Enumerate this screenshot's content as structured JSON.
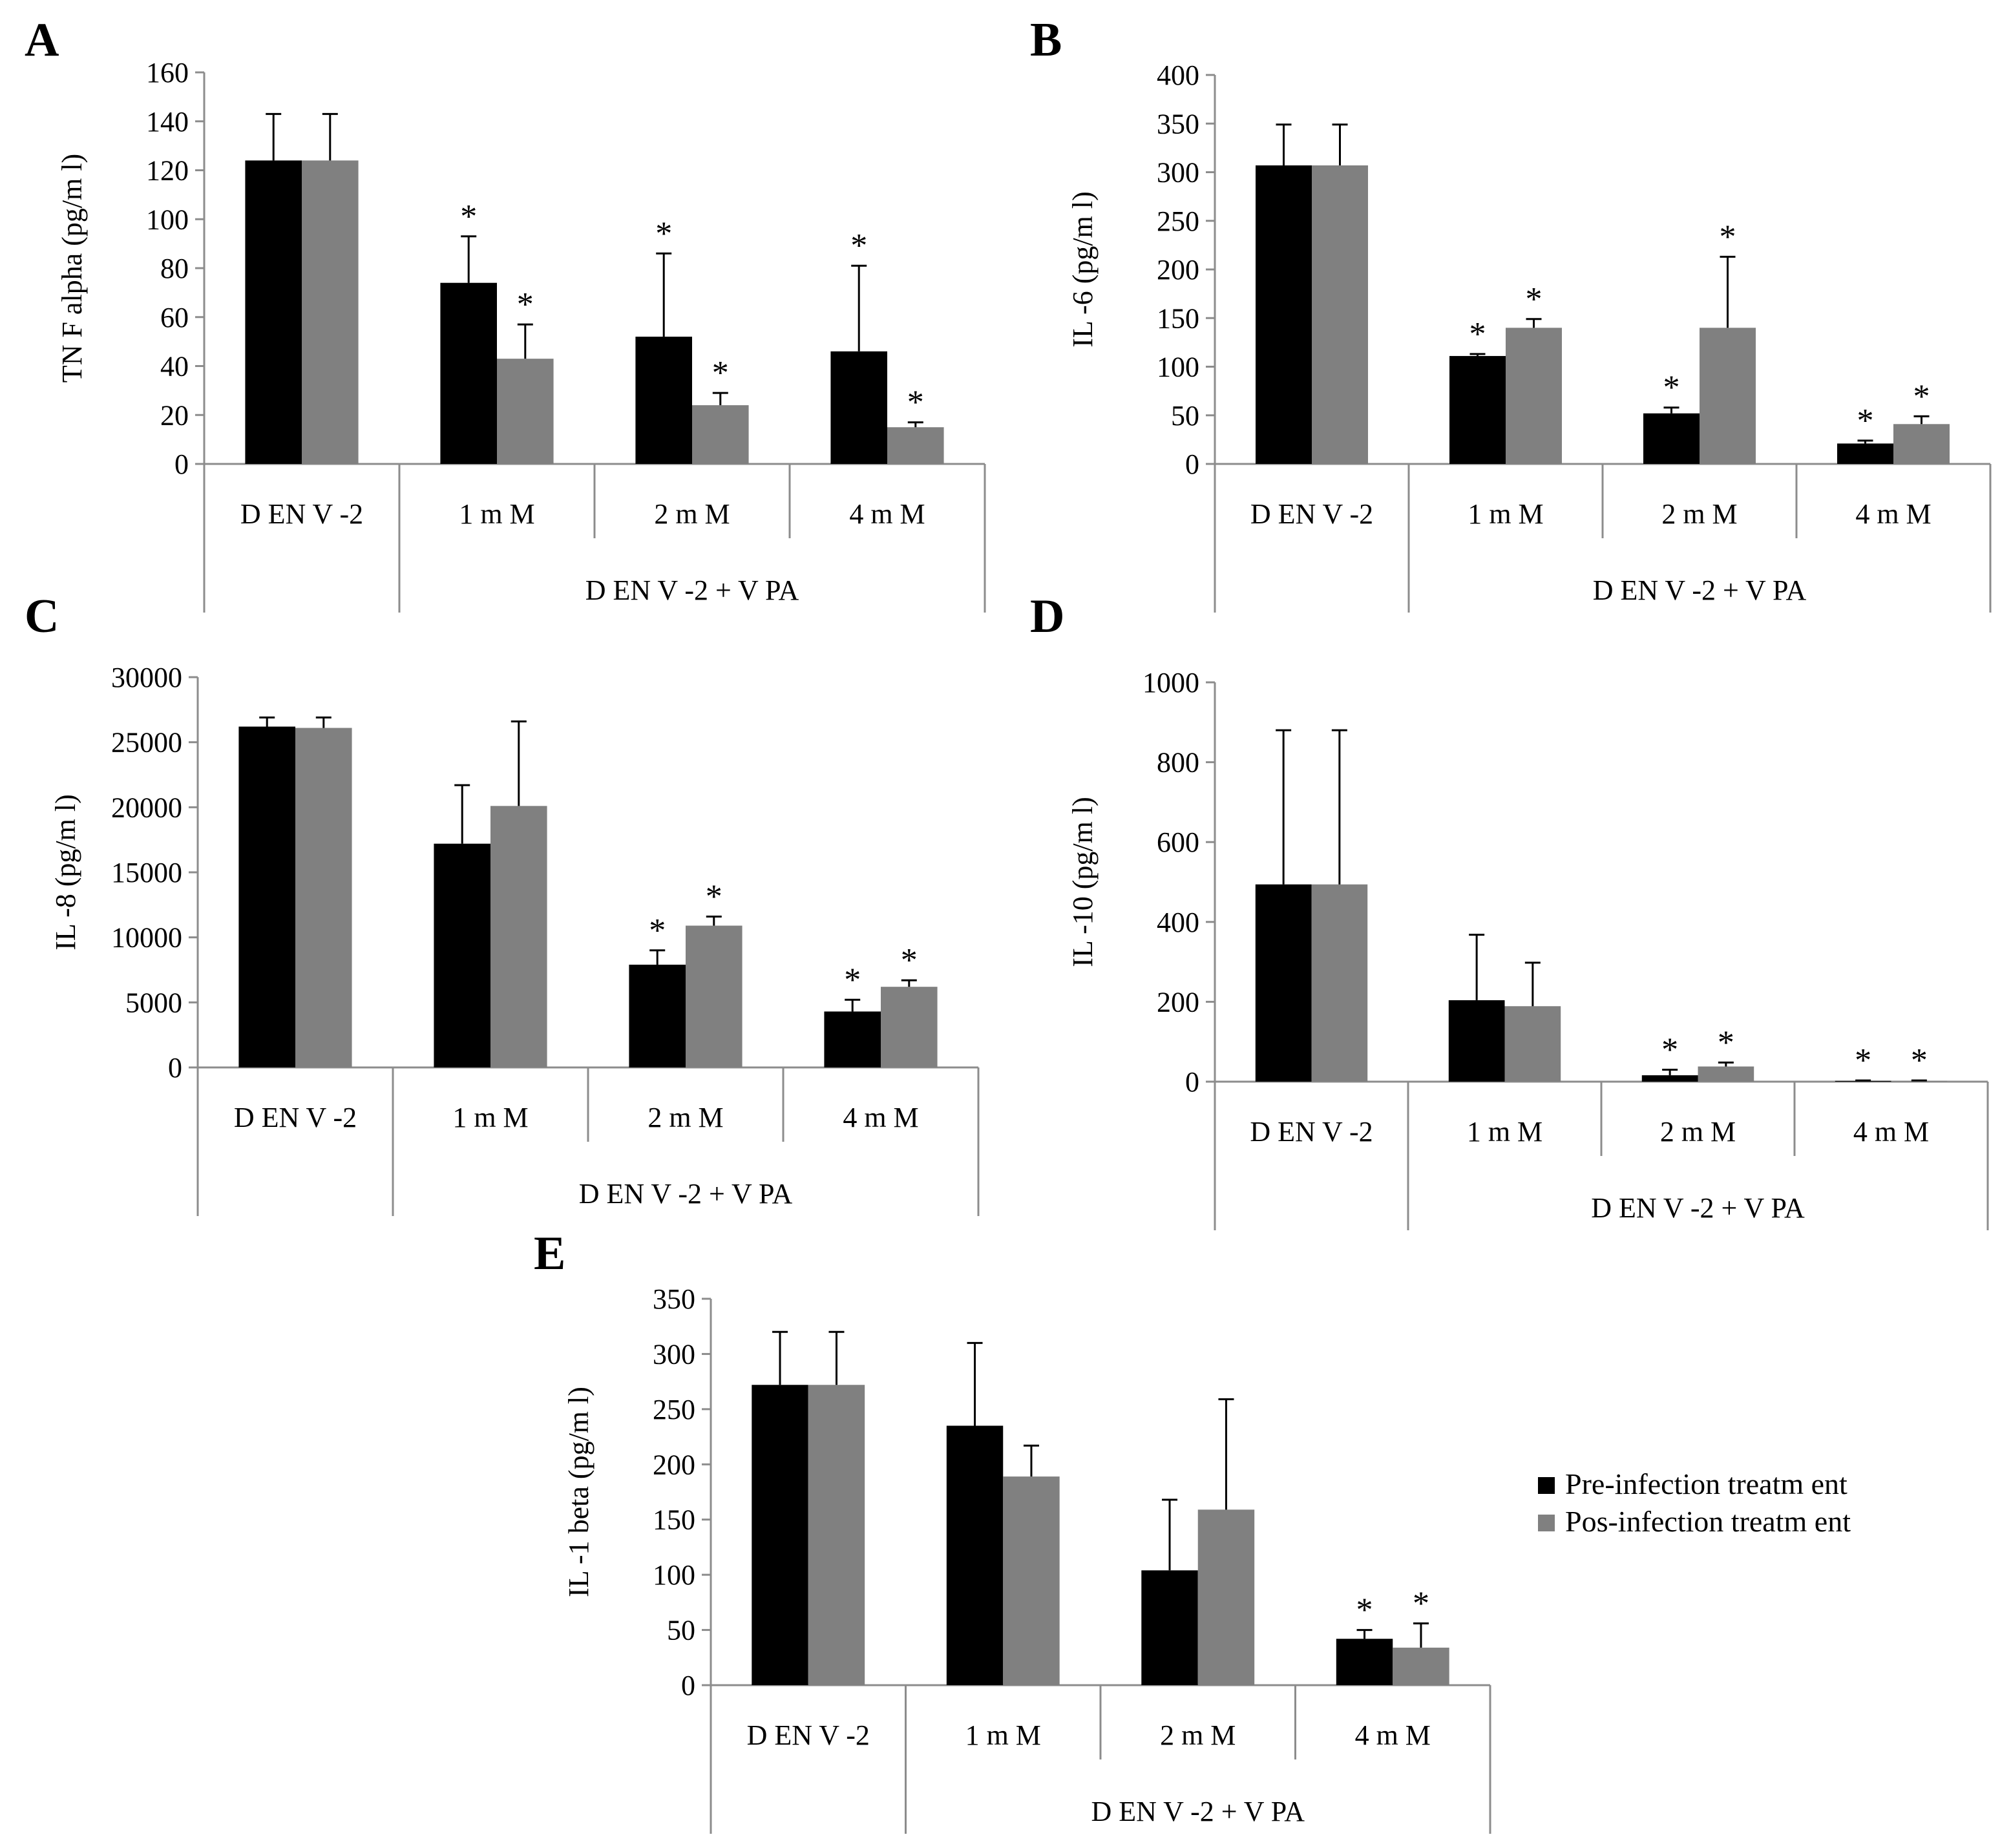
{
  "colors": {
    "pre": "#000000",
    "pos": "#808080",
    "axis": "#8c8c8c",
    "error": "#000000"
  },
  "legend": {
    "pre": "Pre-infection treatm ent",
    "pos": "Pos-infection treatm ent"
  },
  "chart_data": [
    {
      "id": "A",
      "letter": "A",
      "type": "bar",
      "title": "",
      "ylabel": "TN F alpha (pg/m l)",
      "categories": [
        "D EN V -2",
        "1 m M",
        "2 m M",
        "4 m M"
      ],
      "group_label": "D EN V -2 + V PA",
      "ylim": [
        0,
        160
      ],
      "ystep": 20,
      "series": [
        {
          "name": "Pre-infection treatm ent",
          "values": [
            124,
            74,
            52,
            46
          ],
          "errors": [
            19,
            19,
            34,
            35
          ],
          "stars": [
            false,
            true,
            true,
            true
          ]
        },
        {
          "name": "Pos-infection treatm ent",
          "values": [
            124,
            43,
            24,
            15
          ],
          "errors": [
            19,
            14,
            5,
            2
          ],
          "stars": [
            false,
            true,
            true,
            true
          ]
        }
      ]
    },
    {
      "id": "B",
      "letter": "B",
      "type": "bar",
      "title": "",
      "ylabel": "IL -6 (pg/m l)",
      "categories": [
        "D EN V -2",
        "1 m M",
        "2 m M",
        "4 m M"
      ],
      "group_label": "D EN V -2 + V PA",
      "ylim": [
        0,
        400
      ],
      "ystep": 50,
      "series": [
        {
          "name": "Pre-infection treatm ent",
          "values": [
            307,
            111,
            52,
            21
          ],
          "errors": [
            42,
            2,
            6,
            3
          ],
          "stars": [
            false,
            true,
            true,
            true
          ]
        },
        {
          "name": "Pos-infection treatm ent",
          "values": [
            307,
            140,
            140,
            41
          ],
          "errors": [
            42,
            9,
            73,
            8
          ],
          "stars": [
            false,
            true,
            true,
            true
          ]
        }
      ]
    },
    {
      "id": "C",
      "letter": "C",
      "type": "bar",
      "title": "",
      "ylabel": "IL -8 (pg/m l)",
      "categories": [
        "D EN V -2",
        "1 m M",
        "2 m M",
        "4 m M"
      ],
      "group_label": "D EN V -2 + V PA",
      "ylim": [
        0,
        30000
      ],
      "ystep": 5000,
      "series": [
        {
          "name": "Pre-infection treatm ent",
          "values": [
            26200,
            17200,
            7900,
            4300
          ],
          "errors": [
            700,
            4500,
            1100,
            900
          ],
          "stars": [
            false,
            false,
            true,
            true
          ]
        },
        {
          "name": "Pos-infection treatm ent",
          "values": [
            26100,
            20100,
            10900,
            6200
          ],
          "errors": [
            800,
            6500,
            700,
            500
          ],
          "stars": [
            false,
            false,
            true,
            true
          ]
        }
      ]
    },
    {
      "id": "D",
      "letter": "D",
      "type": "bar",
      "title": "",
      "ylabel": "IL -10 (pg/m l)",
      "categories": [
        "D EN V -2",
        "1 m M",
        "2 m M",
        "4 m M"
      ],
      "group_label": "D EN V -2 + V PA",
      "ylim": [
        0,
        1000
      ],
      "ystep": 200,
      "series": [
        {
          "name": "Pre-infection treatm ent",
          "values": [
            494,
            204,
            16,
            2
          ],
          "errors": [
            386,
            164,
            14,
            1
          ],
          "stars": [
            false,
            false,
            true,
            true
          ]
        },
        {
          "name": "Pos-infection treatm ent",
          "values": [
            494,
            189,
            38,
            2
          ],
          "errors": [
            386,
            109,
            10,
            1
          ],
          "stars": [
            false,
            false,
            true,
            true
          ]
        }
      ]
    },
    {
      "id": "E",
      "letter": "E",
      "type": "bar",
      "title": "",
      "ylabel": "IL -1 beta (pg/m l)",
      "categories": [
        "D EN V -2",
        "1 m M",
        "2 m M",
        "4 m M"
      ],
      "group_label": "D EN V -2 + V PA",
      "ylim": [
        0,
        350
      ],
      "ystep": 50,
      "series": [
        {
          "name": "Pre-infection treatm ent",
          "values": [
            272,
            235,
            104,
            42
          ],
          "errors": [
            48,
            75,
            64,
            8
          ],
          "stars": [
            false,
            false,
            false,
            true
          ]
        },
        {
          "name": "Pos-infection treatm ent",
          "values": [
            272,
            189,
            159,
            34
          ],
          "errors": [
            48,
            28,
            100,
            22
          ],
          "stars": [
            false,
            false,
            false,
            true
          ]
        }
      ]
    }
  ]
}
